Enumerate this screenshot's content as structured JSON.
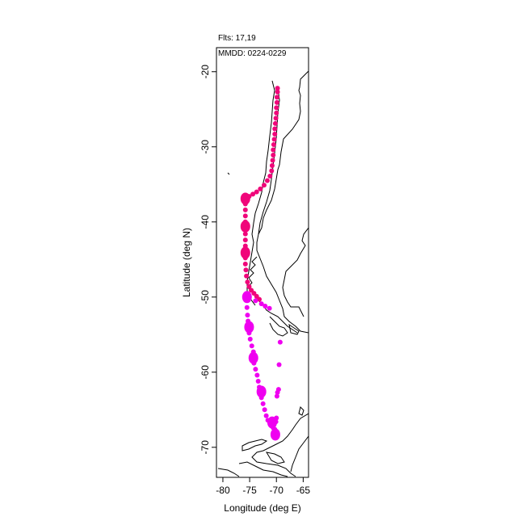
{
  "header": {
    "flights": "Flts: 17,19",
    "dates": "MMDD: 0224-0229"
  },
  "axes": {
    "xlabel": "Longitude (deg E)",
    "ylabel": "Latitude (deg N)",
    "xticks": [
      "-80",
      "-75",
      "-70",
      "-65"
    ],
    "yticks": [
      "-20",
      "-30",
      "-40",
      "-50",
      "-60",
      "-70"
    ]
  },
  "chart_data": {
    "type": "scatter",
    "title": "",
    "xlabel": "Longitude (deg E)",
    "ylabel": "Latitude (deg N)",
    "xlim": [
      -81.2,
      -64.0
    ],
    "ylim": [
      -74.0,
      -16.8
    ],
    "colors": {
      "flight_17": "#f0067a",
      "flight_19": "#ef00f0",
      "coast": "#000000"
    },
    "series": [
      {
        "name": "17",
        "points": [
          [
            -69.8,
            -22.2
          ],
          [
            -69.8,
            -22.7
          ],
          [
            -69.9,
            -23.4
          ],
          [
            -69.9,
            -24.1
          ],
          [
            -70.0,
            -24.8
          ],
          [
            -70.0,
            -25.5
          ],
          [
            -70.1,
            -26.2
          ],
          [
            -70.2,
            -26.9
          ],
          [
            -70.3,
            -27.6
          ],
          [
            -70.3,
            -28.3
          ],
          [
            -70.4,
            -29.0
          ],
          [
            -70.5,
            -29.7
          ],
          [
            -70.6,
            -30.4
          ],
          [
            -70.6,
            -31.1
          ],
          [
            -70.7,
            -31.8
          ],
          [
            -70.8,
            -32.5
          ],
          [
            -70.9,
            -33.2
          ],
          [
            -71.2,
            -33.9
          ],
          [
            -71.7,
            -34.5
          ],
          [
            -72.3,
            -35.1
          ],
          [
            -73.0,
            -35.6
          ],
          [
            -73.7,
            -36.0
          ],
          [
            -74.4,
            -36.3
          ],
          [
            -75.1,
            -36.6
          ],
          [
            -75.7,
            -36.8
          ],
          [
            -75.8,
            -37.6
          ],
          [
            -75.8,
            -38.4
          ],
          [
            -75.8,
            -39.2
          ],
          [
            -75.8,
            -40.0
          ],
          [
            -75.8,
            -40.8
          ],
          [
            -75.8,
            -41.6
          ],
          [
            -75.8,
            -42.4
          ],
          [
            -75.8,
            -43.2
          ],
          [
            -75.8,
            -44.0
          ],
          [
            -75.8,
            -44.8
          ],
          [
            -75.8,
            -45.6
          ],
          [
            -75.7,
            -46.4
          ],
          [
            -75.6,
            -47.2
          ],
          [
            -75.4,
            -48.0
          ],
          [
            -75.1,
            -48.6
          ],
          [
            -74.7,
            -49.1
          ],
          [
            -74.2,
            -49.5
          ],
          [
            -73.7,
            -49.9
          ],
          [
            -73.2,
            -50.3
          ]
        ],
        "large_points": [
          [
            -75.8,
            -36.9
          ],
          [
            -75.8,
            -40.6
          ],
          [
            -75.8,
            -44.1
          ]
        ]
      },
      {
        "name": "19",
        "points": [
          [
            -72.8,
            -50.9
          ],
          [
            -73.9,
            -50.5
          ],
          [
            -75.3,
            -50.4
          ],
          [
            -75.5,
            -51.4
          ],
          [
            -75.4,
            -52.4
          ],
          [
            -75.3,
            -53.2
          ],
          [
            -75.1,
            -54.8
          ],
          [
            -74.9,
            -55.6
          ],
          [
            -74.6,
            -56.5
          ],
          [
            -74.3,
            -57.3
          ],
          [
            -74.2,
            -58.8
          ],
          [
            -73.9,
            -59.6
          ],
          [
            -73.6,
            -60.4
          ],
          [
            -73.4,
            -61.2
          ],
          [
            -73.2,
            -62.0
          ],
          [
            -72.8,
            -63.4
          ],
          [
            -72.5,
            -64.2
          ],
          [
            -72.2,
            -65.0
          ],
          [
            -71.9,
            -65.8
          ],
          [
            -71.6,
            -66.4
          ],
          [
            -70.6,
            -67.4
          ],
          [
            -70.3,
            -67.6
          ],
          [
            -70.1,
            -66.6
          ],
          [
            -70.0,
            -66.1
          ],
          [
            -69.9,
            -63.2
          ],
          [
            -69.8,
            -62.7
          ],
          [
            -69.6,
            -62.3
          ],
          [
            -69.5,
            -59.0
          ],
          [
            -69.3,
            -56.0
          ],
          [
            -71.3,
            -51.5
          ],
          [
            -72.1,
            -51.2
          ]
        ],
        "large_points": [
          [
            -75.5,
            -50.0
          ],
          [
            -75.1,
            -54.0
          ],
          [
            -74.3,
            -58.1
          ],
          [
            -72.8,
            -62.6
          ],
          [
            -70.8,
            -66.7
          ],
          [
            -70.2,
            -68.3
          ]
        ]
      }
    ]
  }
}
